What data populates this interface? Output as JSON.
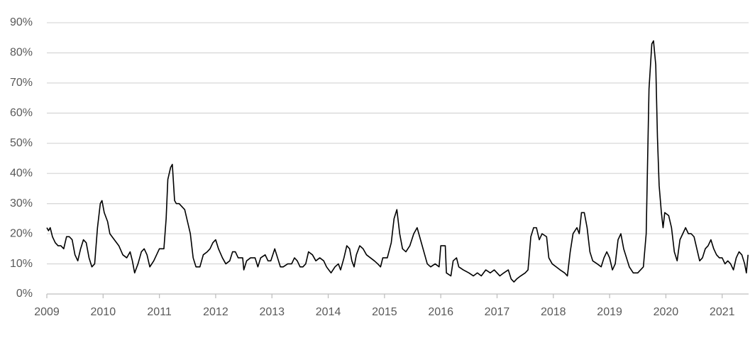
{
  "chart_data": {
    "type": "line",
    "color": "#000000",
    "grid": true,
    "xlim": [
      2009,
      2021.47
    ],
    "xticks": [
      2009,
      2010,
      2011,
      2012,
      2013,
      2014,
      2015,
      2016,
      2017,
      2018,
      2019,
      2020,
      2021
    ],
    "ylim": [
      0,
      90
    ],
    "yticks": [
      {
        "value": 0,
        "label": "0%"
      },
      {
        "value": 10,
        "label": "10%"
      },
      {
        "value": 20,
        "label": "20%"
      },
      {
        "value": 30,
        "label": "30%"
      },
      {
        "value": 40,
        "label": "40%"
      },
      {
        "value": 50,
        "label": "50%"
      },
      {
        "value": 60,
        "label": "60%"
      },
      {
        "value": 70,
        "label": "70%"
      },
      {
        "value": 80,
        "label": "80%"
      },
      {
        "value": 90,
        "label": "90%"
      }
    ],
    "x": [
      2009.0,
      2009.03,
      2009.06,
      2009.1,
      2009.15,
      2009.2,
      2009.25,
      2009.3,
      2009.35,
      2009.4,
      2009.45,
      2009.5,
      2009.55,
      2009.6,
      2009.65,
      2009.7,
      2009.75,
      2009.8,
      2009.85,
      2009.9,
      2009.95,
      2009.98,
      2010.02,
      2010.08,
      2010.12,
      2010.2,
      2010.28,
      2010.35,
      2010.42,
      2010.48,
      2010.52,
      2010.56,
      2010.62,
      2010.68,
      2010.73,
      2010.78,
      2010.83,
      2010.9,
      2010.95,
      2011.0,
      2011.08,
      2011.12,
      2011.15,
      2011.2,
      2011.23,
      2011.27,
      2011.3,
      2011.35,
      2011.4,
      2011.45,
      2011.5,
      2011.55,
      2011.6,
      2011.65,
      2011.72,
      2011.78,
      2011.85,
      2011.9,
      2011.95,
      2012.0,
      2012.05,
      2012.12,
      2012.18,
      2012.25,
      2012.3,
      2012.35,
      2012.4,
      2012.48,
      2012.5,
      2012.55,
      2012.62,
      2012.7,
      2012.75,
      2012.8,
      2012.88,
      2012.93,
      2012.98,
      2013.05,
      2013.1,
      2013.15,
      2013.2,
      2013.28,
      2013.35,
      2013.4,
      2013.45,
      2013.5,
      2013.55,
      2013.6,
      2013.65,
      2013.72,
      2013.78,
      2013.85,
      2013.92,
      2013.97,
      2014.05,
      2014.12,
      2014.18,
      2014.22,
      2014.28,
      2014.33,
      2014.38,
      2014.42,
      2014.46,
      2014.5,
      2014.56,
      2014.62,
      2014.68,
      2014.75,
      2014.82,
      2014.88,
      2014.93,
      2014.97,
      2015.05,
      2015.12,
      2015.17,
      2015.22,
      2015.27,
      2015.32,
      2015.38,
      2015.45,
      2015.52,
      2015.58,
      2015.64,
      2015.7,
      2015.76,
      2015.82,
      2015.9,
      2015.97,
      2016.0,
      2016.08,
      2016.1,
      2016.18,
      2016.22,
      2016.28,
      2016.32,
      2016.4,
      2016.5,
      2016.58,
      2016.65,
      2016.72,
      2016.8,
      2016.88,
      2016.95,
      2017.05,
      2017.12,
      2017.2,
      2017.25,
      2017.3,
      2017.35,
      2017.42,
      2017.5,
      2017.55,
      2017.6,
      2017.65,
      2017.7,
      2017.75,
      2017.8,
      2017.88,
      2017.92,
      2017.98,
      2018.05,
      2018.12,
      2018.2,
      2018.25,
      2018.3,
      2018.35,
      2018.42,
      2018.46,
      2018.5,
      2018.55,
      2018.6,
      2018.65,
      2018.7,
      2018.78,
      2018.85,
      2018.9,
      2018.95,
      2019.0,
      2019.05,
      2019.1,
      2019.15,
      2019.2,
      2019.25,
      2019.3,
      2019.35,
      2019.42,
      2019.5,
      2019.55,
      2019.6,
      2019.65,
      2019.7,
      2019.75,
      2019.78,
      2019.82,
      2019.85,
      2019.88,
      2019.92,
      2019.95,
      2019.98,
      2020.05,
      2020.1,
      2020.15,
      2020.2,
      2020.25,
      2020.3,
      2020.35,
      2020.4,
      2020.45,
      2020.5,
      2020.55,
      2020.6,
      2020.65,
      2020.7,
      2020.75,
      2020.8,
      2020.85,
      2020.9,
      2020.95,
      2021.0,
      2021.05,
      2021.1,
      2021.15,
      2021.2,
      2021.25,
      2021.3,
      2021.35,
      2021.4,
      2021.43,
      2021.46
    ],
    "values": [
      22,
      21,
      22,
      19,
      17,
      16,
      16,
      15,
      19,
      19,
      18,
      13,
      11,
      15,
      18,
      17,
      12,
      9,
      10,
      22,
      30,
      31,
      27,
      24,
      20,
      18,
      16,
      13,
      12,
      14,
      11,
      7,
      10,
      14,
      15,
      13,
      9,
      11,
      13,
      15,
      15,
      25,
      38,
      42,
      43,
      31,
      30,
      30,
      29,
      28,
      24,
      20,
      12,
      9,
      9,
      13,
      14,
      15,
      17,
      18,
      15,
      12,
      10,
      11,
      14,
      14,
      12,
      12,
      8,
      11,
      12,
      12,
      9,
      12,
      13,
      11,
      11,
      15,
      12,
      9,
      9,
      10,
      10,
      12,
      11,
      9,
      9,
      10,
      14,
      13,
      11,
      12,
      11,
      9,
      7,
      9,
      10,
      8,
      12,
      16,
      15,
      11,
      9,
      13,
      16,
      15,
      13,
      12,
      11,
      10,
      9,
      12,
      12,
      17,
      25,
      28,
      20,
      15,
      14,
      16,
      20,
      22,
      18,
      14,
      10,
      9,
      10,
      9,
      16,
      16,
      7,
      6,
      11,
      12,
      9,
      8,
      7,
      6,
      7,
      6,
      8,
      7,
      8,
      6,
      7,
      8,
      5,
      4,
      5,
      6,
      7,
      8,
      19,
      22,
      22,
      18,
      20,
      19,
      12,
      10,
      9,
      8,
      7,
      6,
      14,
      20,
      22,
      20,
      27,
      27,
      22,
      14,
      11,
      10,
      9,
      12,
      14,
      12,
      8,
      10,
      18,
      20,
      15,
      12,
      9,
      7,
      7,
      8,
      9,
      20,
      68,
      83,
      84,
      76,
      52,
      36,
      27,
      22,
      27,
      26,
      22,
      14,
      11,
      18,
      20,
      22,
      20,
      20,
      19,
      15,
      11,
      12,
      15,
      16,
      18,
      15,
      13,
      12,
      12,
      10,
      11,
      10,
      8,
      12,
      14,
      13,
      10,
      7,
      13
    ]
  }
}
